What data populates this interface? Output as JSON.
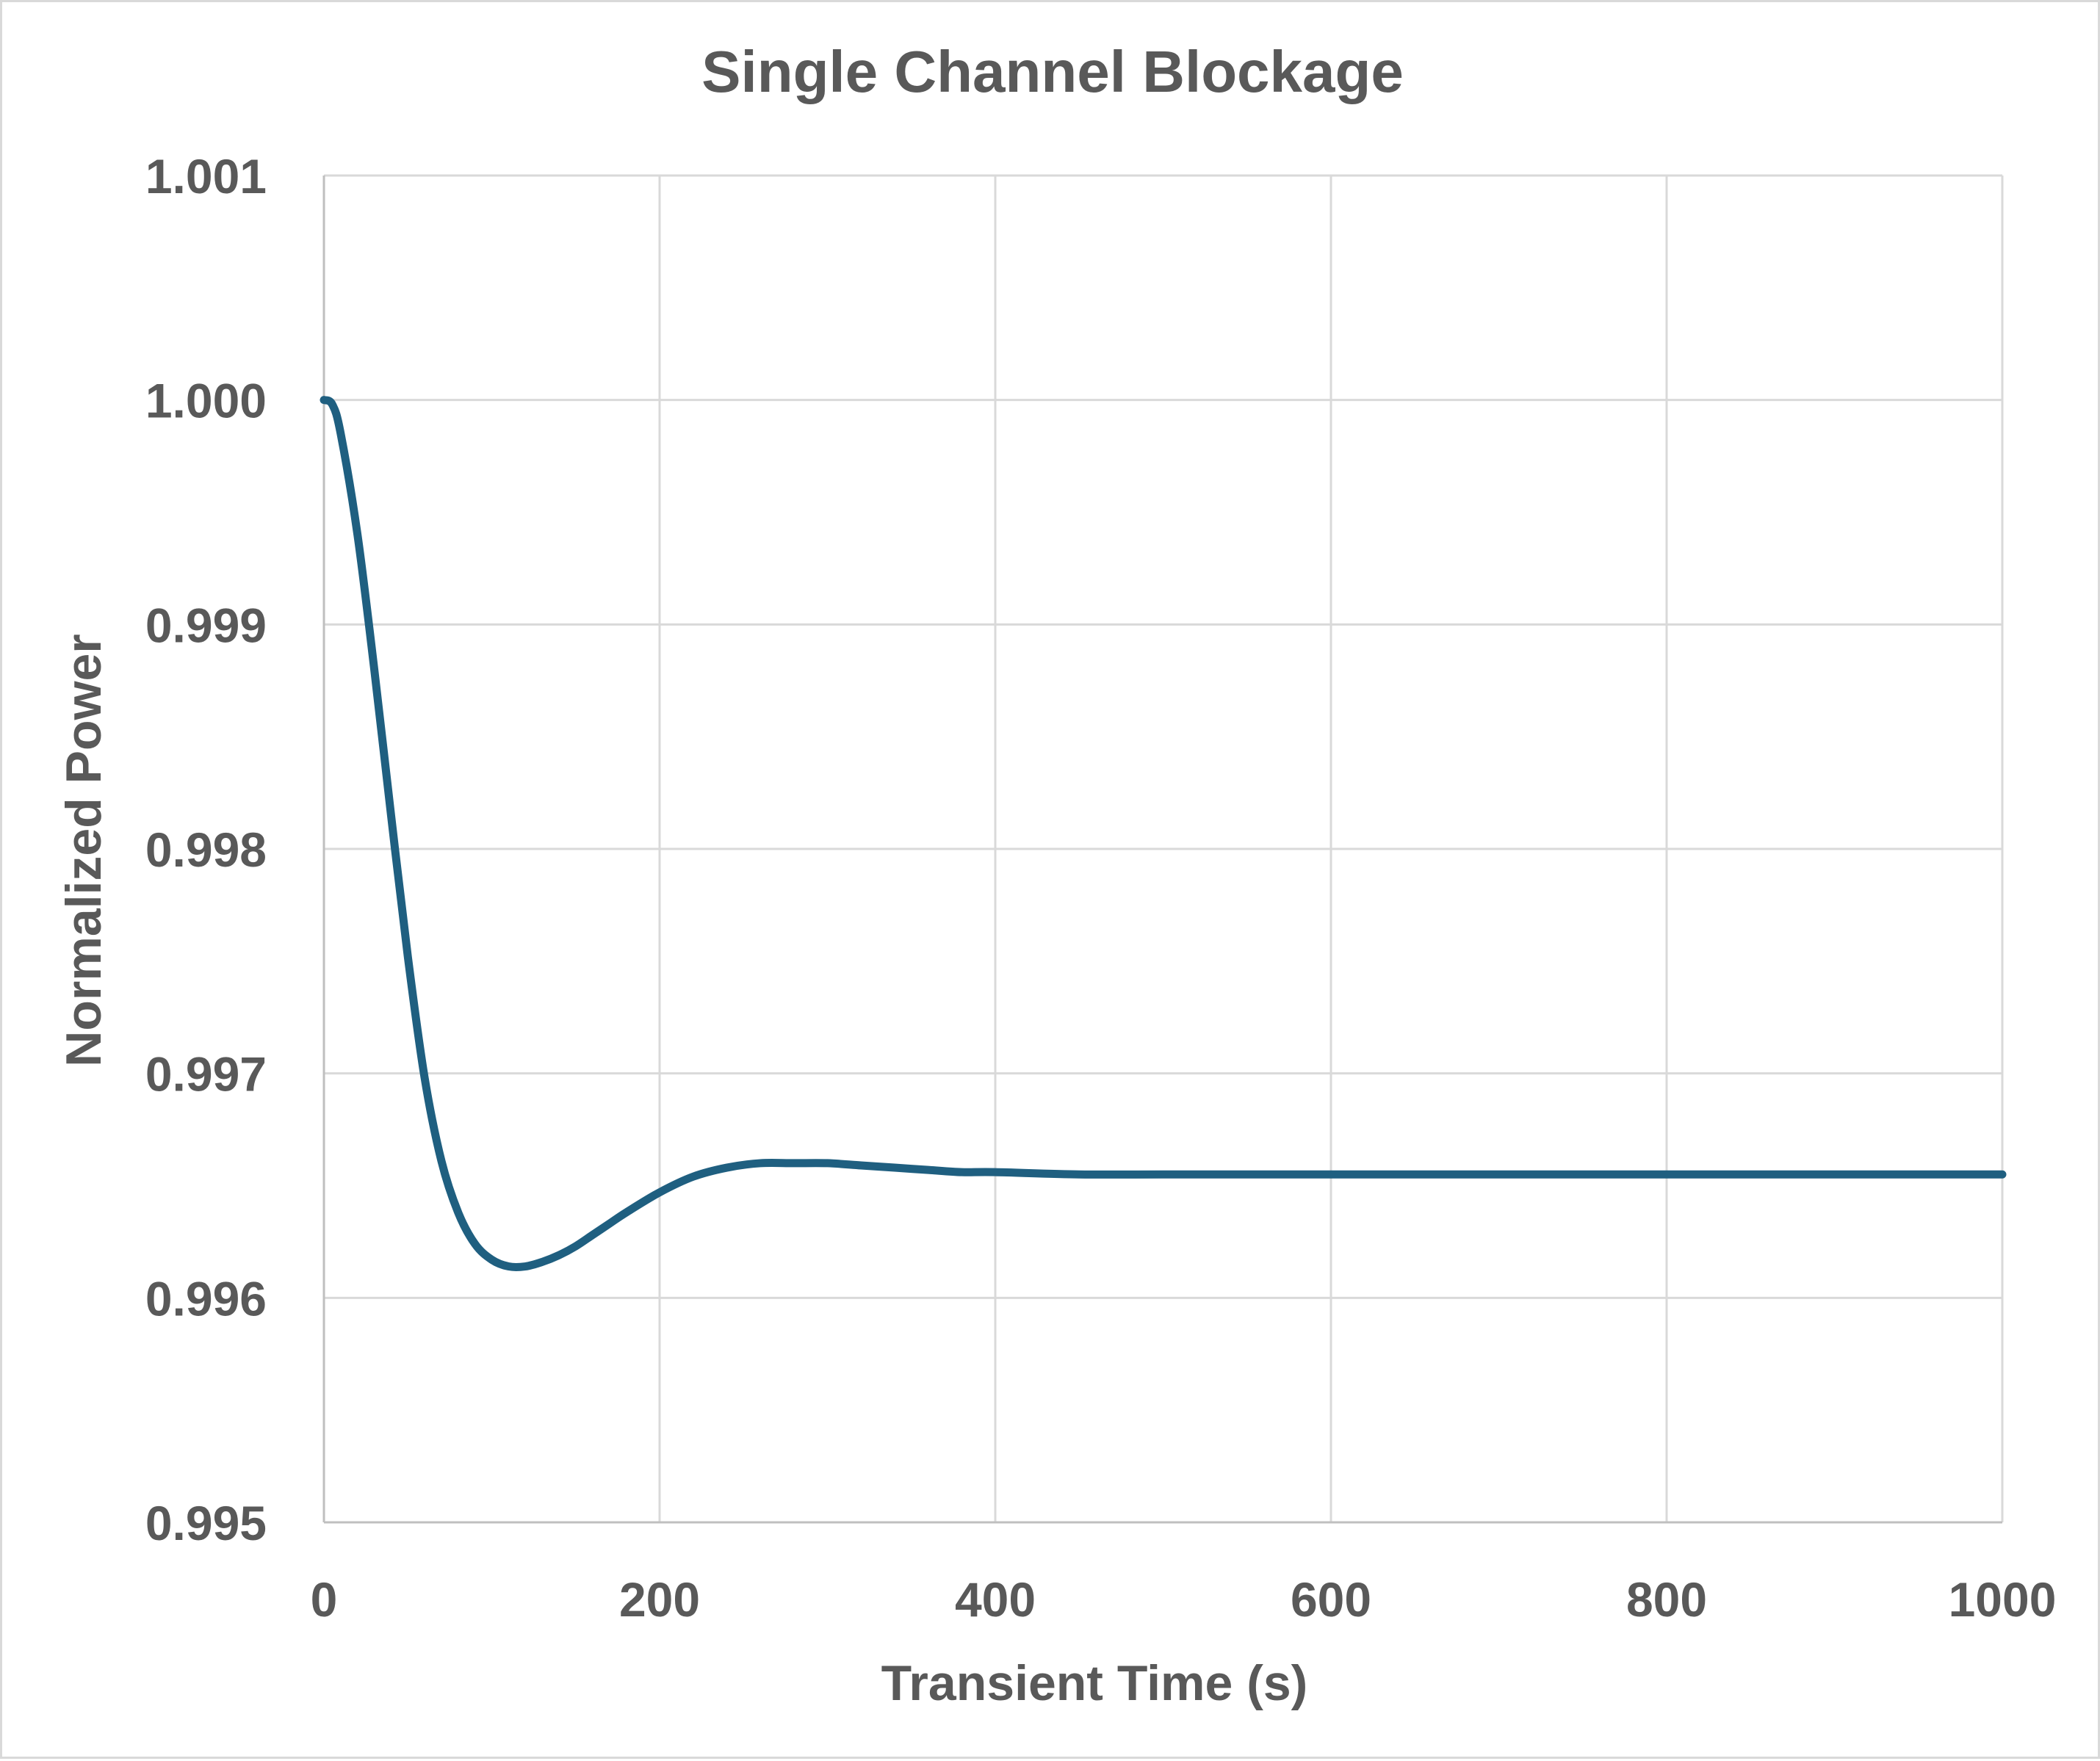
{
  "chart_data": {
    "type": "line",
    "title": "Single Channel Blockage",
    "xlabel": "Transient Time (s)",
    "ylabel": "Normalized Power",
    "xlim": [
      0,
      1000
    ],
    "ylim": [
      0.995,
      1.001
    ],
    "x_ticks": [
      "0",
      "200",
      "400",
      "600",
      "800",
      "1000"
    ],
    "x_tick_values": [
      0,
      200,
      400,
      600,
      800,
      1000
    ],
    "y_ticks": [
      "0.995",
      "0.996",
      "0.997",
      "0.998",
      "0.999",
      "1.000",
      "1.001"
    ],
    "y_tick_values": [
      0.995,
      0.996,
      0.997,
      0.998,
      0.999,
      1.0,
      1.001
    ],
    "grid": true,
    "legend": "none",
    "series": [
      {
        "color": "#1f5f80",
        "x": [
          0,
          5,
          10,
          20,
          30,
          40,
          50,
          60,
          70,
          80,
          90,
          100,
          110,
          120,
          130,
          140,
          150,
          160,
          170,
          180,
          200,
          220,
          240,
          260,
          280,
          300,
          320,
          340,
          360,
          380,
          400,
          450,
          500,
          600,
          700,
          800,
          900,
          1000
        ],
        "y": [
          1.0,
          0.99998,
          0.99985,
          0.9994,
          0.9988,
          0.99815,
          0.99752,
          0.99698,
          0.99661,
          0.99638,
          0.99624,
          0.99617,
          0.99614,
          0.99614,
          0.99616,
          0.99619,
          0.99623,
          0.99628,
          0.99633,
          0.99638,
          0.99647,
          0.99654,
          0.99658,
          0.9966,
          0.9966,
          0.9966,
          0.99659,
          0.99658,
          0.99657,
          0.99656,
          0.99656,
          0.99655,
          0.99655,
          0.99655,
          0.99655,
          0.99655,
          0.99655,
          0.99655
        ]
      }
    ]
  }
}
